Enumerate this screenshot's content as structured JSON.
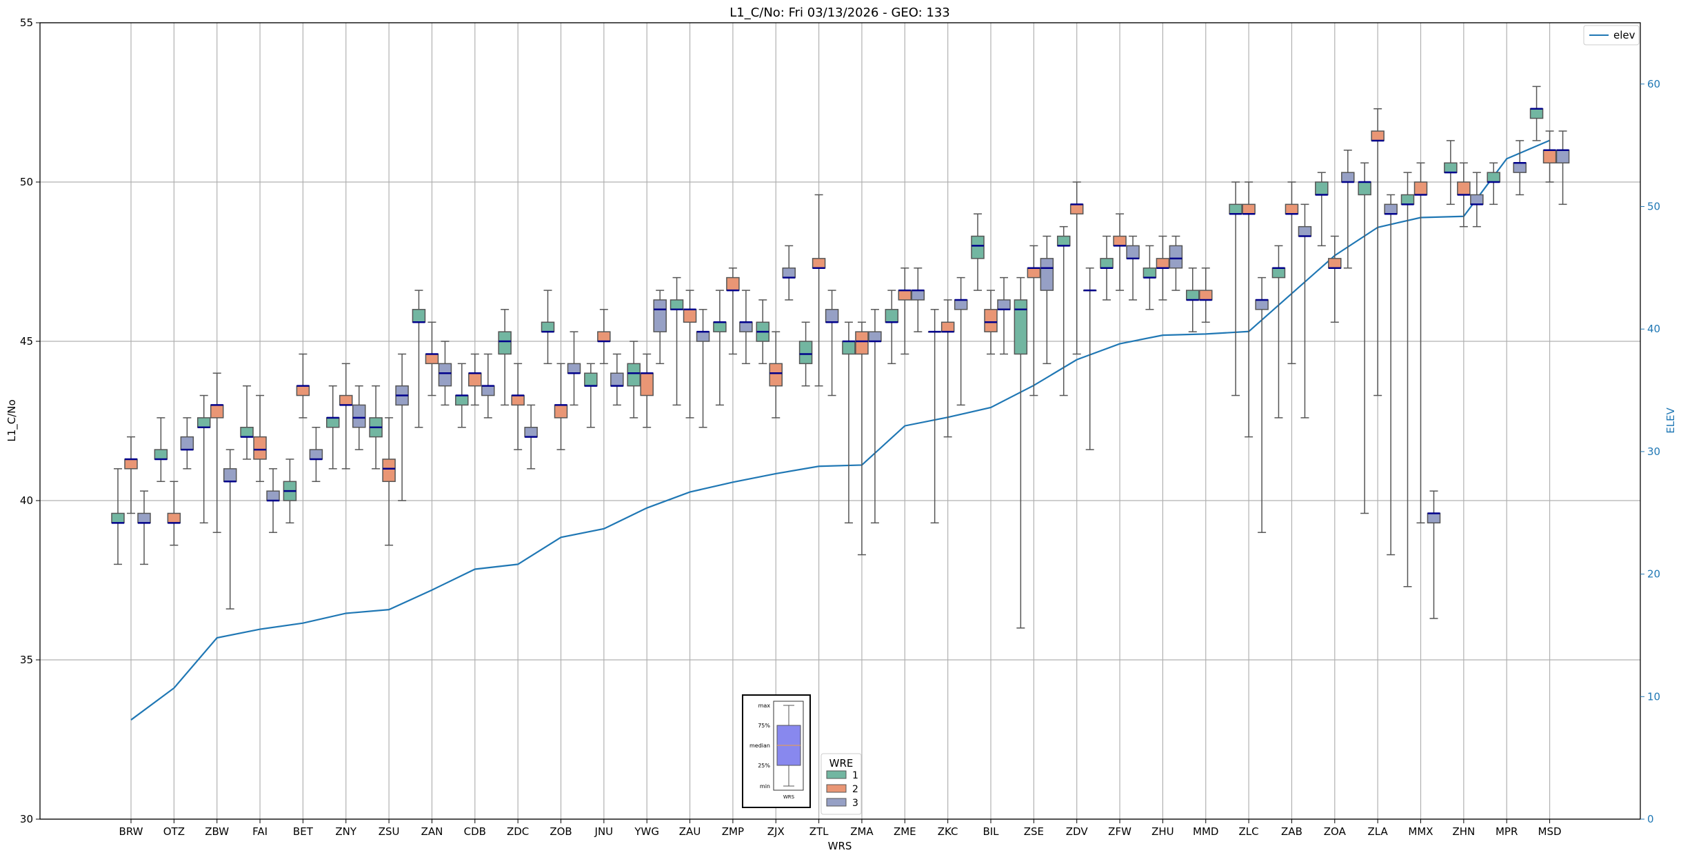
{
  "chart_data": {
    "type": "box",
    "title": "L1_C/No: Fri 03/13/2026 - GEO: 133",
    "xlabel": "WRS",
    "ylabel": "L1_C/No",
    "y2label": "ELEV",
    "ylim": [
      30,
      55
    ],
    "y2lim": [
      0,
      65
    ],
    "yticks": [
      30,
      35,
      40,
      45,
      50,
      55
    ],
    "y2ticks": [
      0,
      10,
      20,
      30,
      40,
      50,
      60
    ],
    "grid": true,
    "categories": [
      "BRW",
      "OTZ",
      "ZBW",
      "FAI",
      "BET",
      "ZNY",
      "ZSU",
      "ZAN",
      "CDB",
      "ZDC",
      "ZOB",
      "JNU",
      "YWG",
      "ZAU",
      "ZMP",
      "ZJX",
      "ZTL",
      "ZMA",
      "ZME",
      "ZKC",
      "BIL",
      "ZSE",
      "ZDV",
      "ZFW",
      "ZHU",
      "MMD",
      "ZLC",
      "ZAB",
      "ZOA",
      "ZLA",
      "MMX",
      "ZHN",
      "MPR",
      "MSD"
    ],
    "box_format": [
      "min",
      "q1",
      "median",
      "q3",
      "max"
    ],
    "legend_title": "WRE",
    "legend_placement": "bottom-center",
    "series": [
      {
        "name": "1",
        "color": "#72b6a1",
        "boxes": [
          [
            38.0,
            39.3,
            39.3,
            39.6,
            41.0
          ],
          [
            40.6,
            41.3,
            41.3,
            41.6,
            42.6
          ],
          [
            39.3,
            42.3,
            42.3,
            42.6,
            43.3
          ],
          [
            41.3,
            42.0,
            42.0,
            42.3,
            43.6
          ],
          [
            39.3,
            40.0,
            40.3,
            40.6,
            41.3
          ],
          [
            41.0,
            42.3,
            42.6,
            42.6,
            43.6
          ],
          [
            41.0,
            42.0,
            42.3,
            42.6,
            43.6
          ],
          [
            42.3,
            45.6,
            45.6,
            46.0,
            46.6
          ],
          [
            42.3,
            43.0,
            43.3,
            43.3,
            44.3
          ],
          [
            43.0,
            44.6,
            45.0,
            45.3,
            46.0
          ],
          [
            44.3,
            45.3,
            45.3,
            45.6,
            46.6
          ],
          [
            42.3,
            43.6,
            43.6,
            44.0,
            44.3
          ],
          [
            42.6,
            43.6,
            44.0,
            44.3,
            45.0
          ],
          [
            43.0,
            46.0,
            46.0,
            46.3,
            47.0
          ],
          [
            43.0,
            45.3,
            45.6,
            45.6,
            46.6
          ],
          [
            44.3,
            45.0,
            45.3,
            45.6,
            46.3
          ],
          [
            43.6,
            44.3,
            44.6,
            45.0,
            45.6
          ],
          [
            39.3,
            44.6,
            45.0,
            45.0,
            45.6
          ],
          [
            44.3,
            45.6,
            45.6,
            46.0,
            46.6
          ],
          [
            39.3,
            45.3,
            45.3,
            45.3,
            46.0
          ],
          [
            46.6,
            47.6,
            48.0,
            48.3,
            49.0
          ],
          [
            36.0,
            44.6,
            46.0,
            46.3,
            47.0
          ],
          [
            43.3,
            48.0,
            48.0,
            48.3,
            48.6
          ],
          [
            46.3,
            47.3,
            47.3,
            47.6,
            48.3
          ],
          [
            46.0,
            47.0,
            47.0,
            47.3,
            48.0
          ],
          [
            45.3,
            46.3,
            46.3,
            46.6,
            47.3
          ],
          [
            43.3,
            49.0,
            49.0,
            49.3,
            50.0
          ],
          [
            42.6,
            47.0,
            47.3,
            47.3,
            48.0
          ],
          [
            48.0,
            49.6,
            49.6,
            50.0,
            50.3
          ],
          [
            39.6,
            49.6,
            50.0,
            50.0,
            50.6
          ],
          [
            37.3,
            49.3,
            49.3,
            49.6,
            50.3
          ],
          [
            49.3,
            50.3,
            50.3,
            50.6,
            51.3
          ],
          [
            49.3,
            50.0,
            50.0,
            50.3,
            50.6
          ],
          [
            51.3,
            52.0,
            52.3,
            52.3,
            53.0
          ]
        ]
      },
      {
        "name": "2",
        "color": "#e99675",
        "boxes": [
          [
            39.6,
            41.0,
            41.3,
            41.3,
            42.0
          ],
          [
            38.6,
            39.3,
            39.3,
            39.6,
            40.6
          ],
          [
            39.0,
            42.6,
            43.0,
            43.0,
            44.0
          ],
          [
            40.6,
            41.3,
            41.6,
            42.0,
            43.3
          ],
          [
            42.6,
            43.3,
            43.6,
            43.6,
            44.6
          ],
          [
            41.0,
            43.0,
            43.0,
            43.3,
            44.3
          ],
          [
            38.6,
            40.6,
            41.0,
            41.3,
            42.6
          ],
          [
            43.3,
            44.3,
            44.6,
            44.6,
            45.6
          ],
          [
            43.0,
            43.6,
            44.0,
            44.0,
            44.6
          ],
          [
            41.6,
            43.0,
            43.3,
            43.3,
            44.3
          ],
          [
            41.6,
            42.6,
            43.0,
            43.0,
            44.3
          ],
          [
            44.3,
            45.0,
            45.0,
            45.3,
            46.0
          ],
          [
            42.3,
            43.3,
            44.0,
            44.0,
            44.6
          ],
          [
            42.6,
            45.6,
            46.0,
            46.0,
            46.6
          ],
          [
            44.6,
            46.6,
            46.6,
            47.0,
            47.3
          ],
          [
            42.6,
            43.6,
            44.0,
            44.3,
            45.3
          ],
          [
            43.6,
            47.3,
            47.3,
            47.6,
            49.6
          ],
          [
            38.3,
            44.6,
            45.0,
            45.3,
            45.6
          ],
          [
            44.6,
            46.3,
            46.6,
            46.6,
            47.3
          ],
          [
            42.0,
            45.3,
            45.3,
            45.6,
            46.3
          ],
          [
            44.6,
            45.3,
            45.6,
            46.0,
            46.6
          ],
          [
            43.3,
            47.0,
            47.3,
            47.3,
            48.0
          ],
          [
            44.6,
            49.0,
            49.3,
            49.3,
            50.0
          ],
          [
            46.6,
            48.0,
            48.0,
            48.3,
            49.0
          ],
          [
            46.3,
            47.3,
            47.3,
            47.6,
            48.3
          ],
          [
            45.6,
            46.3,
            46.3,
            46.6,
            47.3
          ],
          [
            42.0,
            49.0,
            49.0,
            49.3,
            50.0
          ],
          [
            44.3,
            49.0,
            49.0,
            49.3,
            50.0
          ],
          [
            45.6,
            47.3,
            47.3,
            47.6,
            48.3
          ],
          [
            43.3,
            51.3,
            51.3,
            51.6,
            52.3
          ],
          [
            39.3,
            49.6,
            49.6,
            50.0,
            50.6
          ],
          [
            48.6,
            49.6,
            49.6,
            50.0,
            50.6
          ],
          null,
          [
            50.0,
            50.6,
            51.0,
            51.0,
            51.6
          ]
        ]
      },
      {
        "name": "3",
        "color": "#96a0c5",
        "boxes": [
          [
            38.0,
            39.3,
            39.3,
            39.6,
            40.3
          ],
          [
            41.0,
            41.6,
            41.6,
            42.0,
            42.6
          ],
          [
            36.6,
            40.6,
            40.6,
            41.0,
            41.6
          ],
          [
            39.0,
            40.0,
            40.0,
            40.3,
            41.0
          ],
          [
            40.6,
            41.3,
            41.3,
            41.6,
            42.3
          ],
          [
            41.6,
            42.3,
            42.6,
            43.0,
            43.6
          ],
          [
            40.0,
            43.0,
            43.3,
            43.6,
            44.6
          ],
          [
            43.0,
            43.6,
            44.0,
            44.3,
            45.0
          ],
          [
            42.6,
            43.3,
            43.6,
            43.6,
            44.6
          ],
          [
            41.0,
            42.0,
            42.0,
            42.3,
            43.0
          ],
          [
            43.0,
            44.0,
            44.0,
            44.3,
            45.3
          ],
          [
            43.0,
            43.6,
            43.6,
            44.0,
            44.6
          ],
          [
            44.3,
            45.3,
            46.0,
            46.3,
            46.6
          ],
          [
            42.3,
            45.0,
            45.3,
            45.3,
            46.0
          ],
          [
            44.3,
            45.3,
            45.6,
            45.6,
            46.6
          ],
          [
            46.3,
            47.0,
            47.0,
            47.3,
            48.0
          ],
          [
            43.3,
            45.6,
            45.6,
            46.0,
            46.6
          ],
          [
            39.3,
            45.0,
            45.0,
            45.3,
            46.0
          ],
          [
            45.3,
            46.3,
            46.6,
            46.6,
            47.3
          ],
          [
            43.0,
            46.0,
            46.3,
            46.3,
            47.0
          ],
          [
            44.6,
            46.0,
            46.0,
            46.3,
            47.0
          ],
          [
            44.3,
            46.6,
            47.3,
            47.6,
            48.3
          ],
          [
            41.6,
            46.6,
            46.6,
            46.6,
            47.3
          ],
          [
            46.3,
            47.6,
            47.6,
            48.0,
            48.3
          ],
          [
            46.6,
            47.3,
            47.6,
            48.0,
            48.3
          ],
          null,
          [
            39.0,
            46.0,
            46.3,
            46.3,
            47.0
          ],
          [
            42.6,
            48.3,
            48.3,
            48.6,
            49.3
          ],
          [
            47.3,
            50.0,
            50.0,
            50.3,
            51.0
          ],
          [
            38.3,
            49.0,
            49.0,
            49.3,
            49.6
          ],
          [
            36.3,
            39.3,
            39.6,
            39.6,
            40.3
          ],
          [
            48.6,
            49.3,
            49.3,
            49.6,
            50.3
          ],
          [
            49.6,
            50.3,
            50.6,
            50.6,
            51.3
          ],
          [
            49.3,
            50.6,
            51.0,
            51.0,
            51.6
          ]
        ]
      }
    ],
    "elev": {
      "name": "elev",
      "color": "#1f77b4",
      "values": [
        8.1,
        10.7,
        14.8,
        15.5,
        16.0,
        16.8,
        17.1,
        18.7,
        20.4,
        20.8,
        23.0,
        23.7,
        25.4,
        26.7,
        27.5,
        28.2,
        28.8,
        28.9,
        32.1,
        32.8,
        33.6,
        35.4,
        37.5,
        38.8,
        39.5,
        39.6,
        39.8,
        42.9,
        46.0,
        48.3,
        49.1,
        49.2,
        53.9,
        55.4
      ]
    },
    "inset_legend": {
      "labels": [
        "max",
        "75%",
        "median",
        "25%",
        "min"
      ],
      "xlabel": "WRS"
    },
    "colors": {
      "median": "#00008b",
      "whisker": "#555555"
    }
  }
}
